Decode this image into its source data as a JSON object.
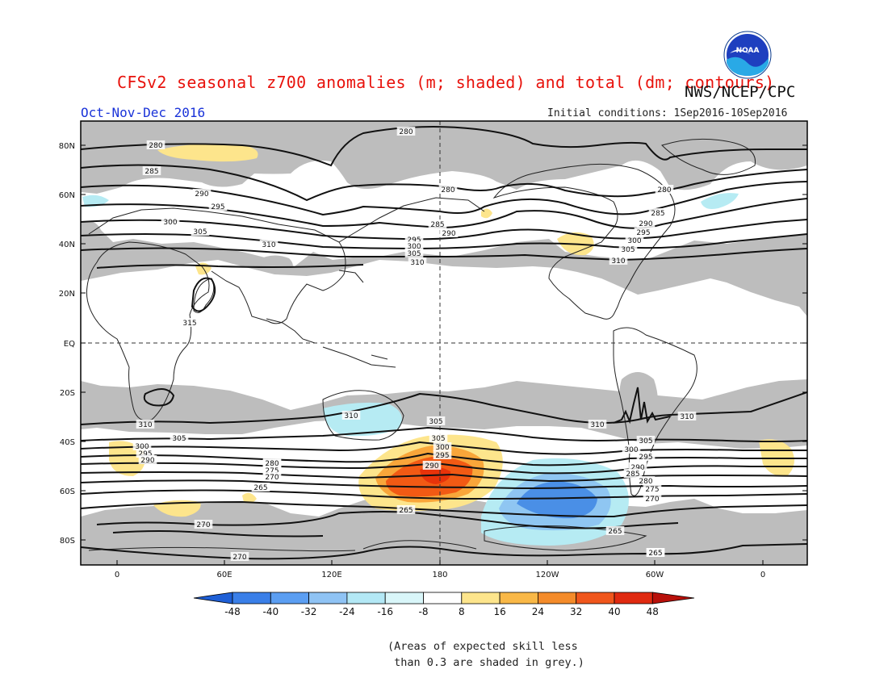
{
  "header": {
    "title": "CFSv2 seasonal z700 anomalies (m; shaded) and total (dm; contours)",
    "agency": "NWS/NCEP/CPC",
    "season": "Oct-Nov-Dec 2016",
    "initial_conditions": "Initial conditions: 1Sep2016-10Sep2016",
    "logo_text": "NOAA"
  },
  "map": {
    "lat_labels": [
      "80N",
      "60N",
      "40N",
      "20N",
      "EQ",
      "20S",
      "40S",
      "60S",
      "80S"
    ],
    "lon_labels": [
      "0",
      "60E",
      "120E",
      "180",
      "120W",
      "60W",
      "0"
    ],
    "contour_labels": [
      "280",
      "280",
      "285",
      "290",
      "295",
      "300",
      "305",
      "310",
      "280",
      "285",
      "290",
      "295",
      "300",
      "305",
      "310",
      "280",
      "285",
      "290",
      "295",
      "300",
      "305",
      "310",
      "315",
      "310",
      "310",
      "305",
      "310",
      "310",
      "305",
      "300",
      "295",
      "290",
      "285",
      "280",
      "275",
      "270",
      "265",
      "265",
      "270",
      "270",
      "265",
      "305",
      "300",
      "295",
      "290",
      "285",
      "280",
      "275",
      "270",
      "265",
      "265",
      "305",
      "300",
      "295",
      "290"
    ],
    "colors": {
      "skill_grey": "#bdbdbd",
      "ocean_bg": "#ffffff",
      "positive_light": "#fde58c",
      "positive_mid": "#f9a63a",
      "positive_strong": "#f25a14",
      "positive_max": "#e8330a",
      "negative_light": "#b6ebf3",
      "negative_mid": "#8fc6f2",
      "negative_strong": "#4a8fe6",
      "negative_max": "#2f73d8"
    }
  },
  "colorbar": {
    "labels": [
      "-48",
      "-40",
      "-32",
      "-24",
      "-16",
      "-8",
      "8",
      "16",
      "24",
      "32",
      "40",
      "48"
    ],
    "colors": [
      "#1e5fd6",
      "#3a7fe8",
      "#5b9ef2",
      "#8fc3f4",
      "#b3e8f5",
      "#d9f6f9",
      "#ffffff",
      "#fde58c",
      "#f9b847",
      "#f48b2a",
      "#f0561c",
      "#e02a10",
      "#b8100a"
    ]
  },
  "note": {
    "line1": "(Areas of expected skill less",
    "line2": " than 0.3 are shaded in grey.)"
  }
}
